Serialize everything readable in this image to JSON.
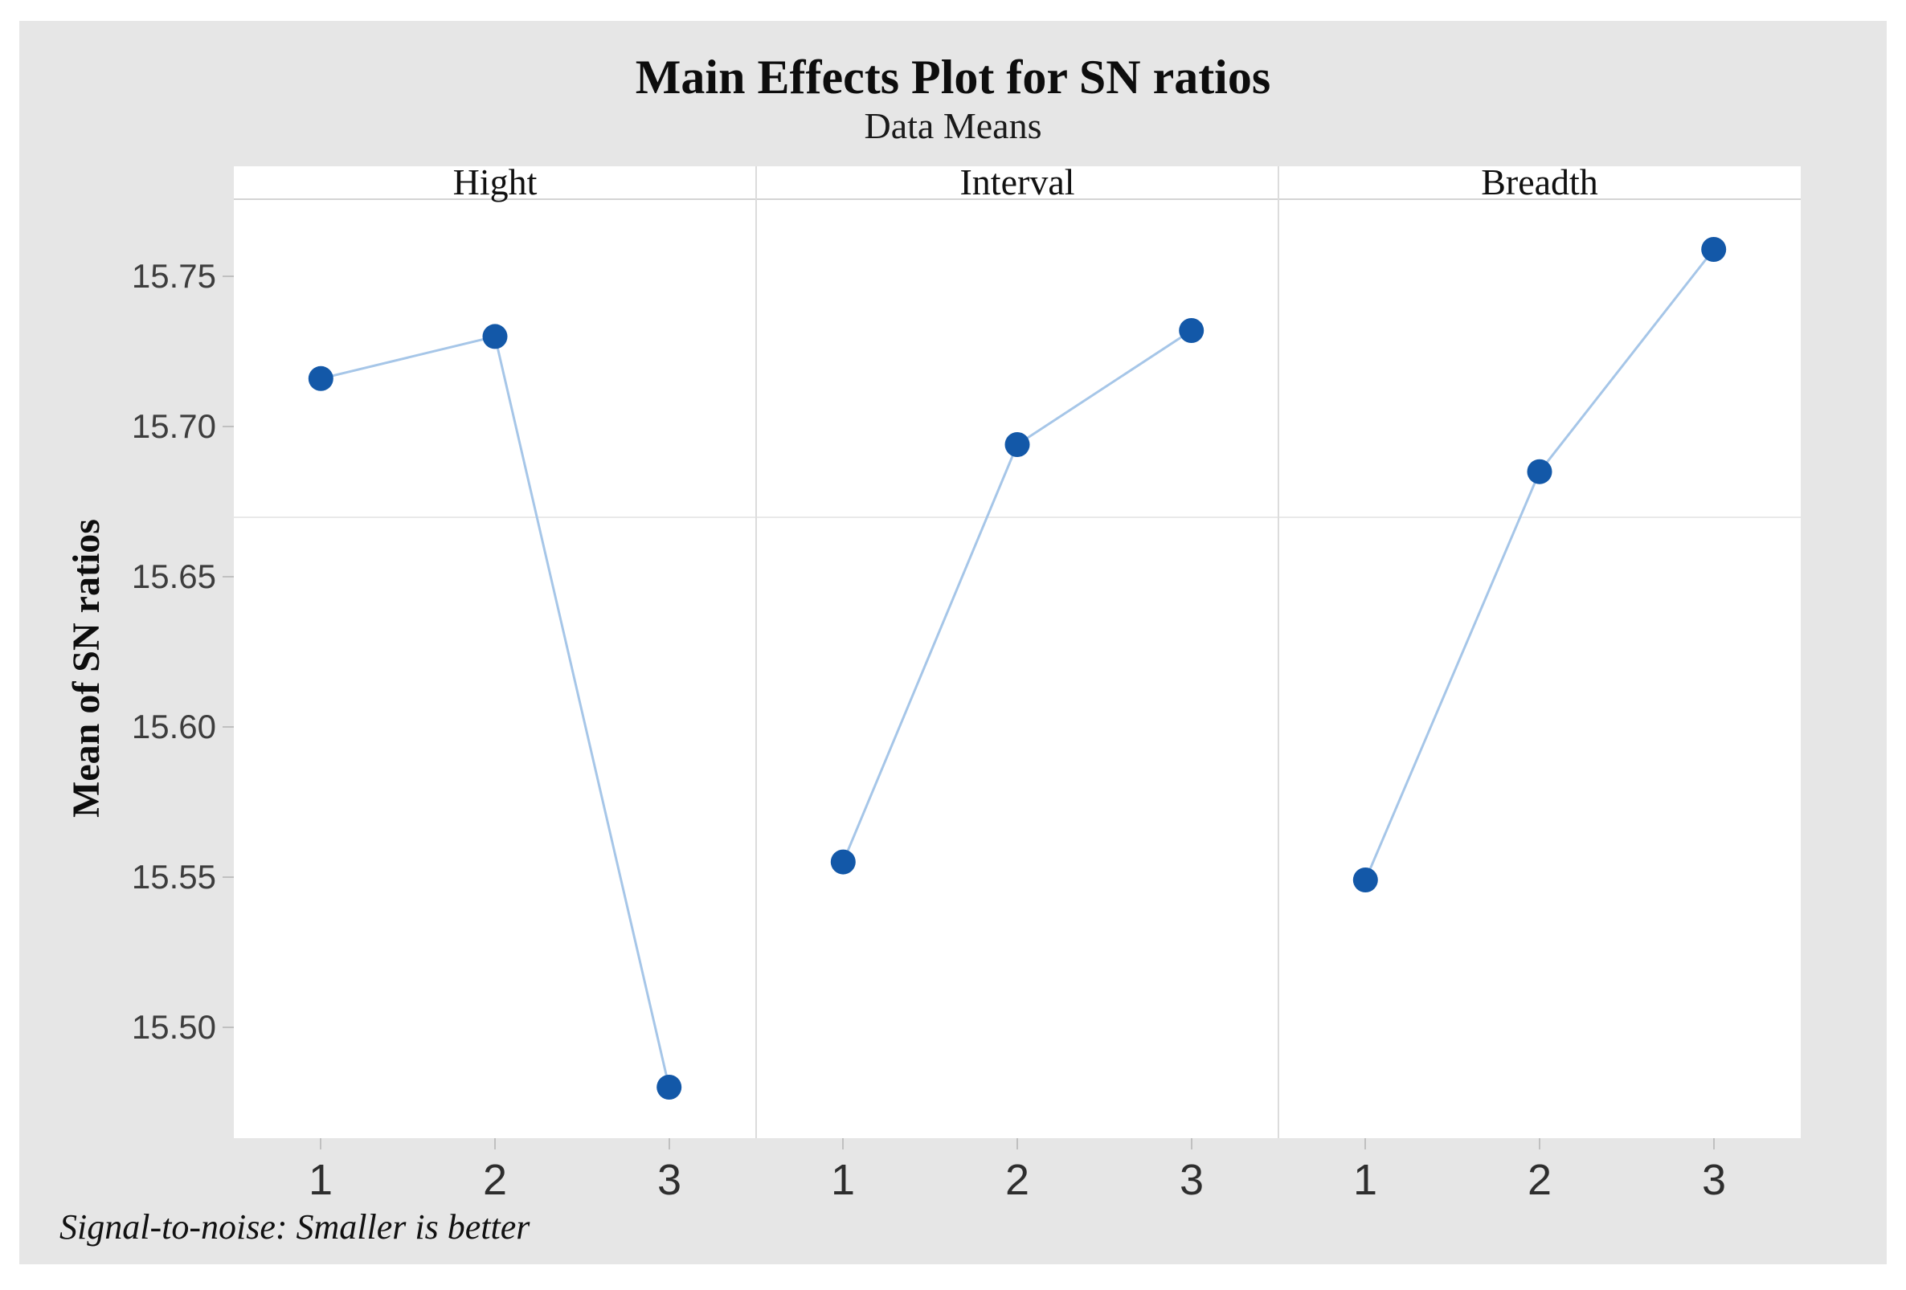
{
  "chart_data": {
    "type": "line",
    "title": "Main Effects Plot for SN ratios",
    "subtitle": "Data Means",
    "ylabel": "Mean of SN ratios",
    "footnote": "Signal-to-noise: Smaller is better",
    "categories": [
      "1",
      "2",
      "3"
    ],
    "panels": [
      {
        "label": "Hight",
        "values": [
          15.716,
          15.73,
          15.48
        ]
      },
      {
        "label": "Interval",
        "values": [
          15.555,
          15.694,
          15.732
        ]
      },
      {
        "label": "Breadth",
        "values": [
          15.549,
          15.685,
          15.759
        ]
      }
    ],
    "yticks": [
      15.75,
      15.7,
      15.65,
      15.6,
      15.55,
      15.5
    ],
    "ylim": [
      15.463,
      15.776
    ],
    "reference_line": 15.67,
    "grid": "single horizontal reference line across all panels",
    "legend": "none",
    "colors": {
      "marker": "#1358a8",
      "series_line": "#a6c6e8",
      "canvas": "#e6e6e6",
      "plot_background": "#ffffff",
      "reference_line": "#e9e9e9",
      "panel_divider": "#dcdcdc",
      "tick": "#c0c0c0",
      "tick_label": "#3d3d3d",
      "text": "#0d0d0d"
    }
  }
}
